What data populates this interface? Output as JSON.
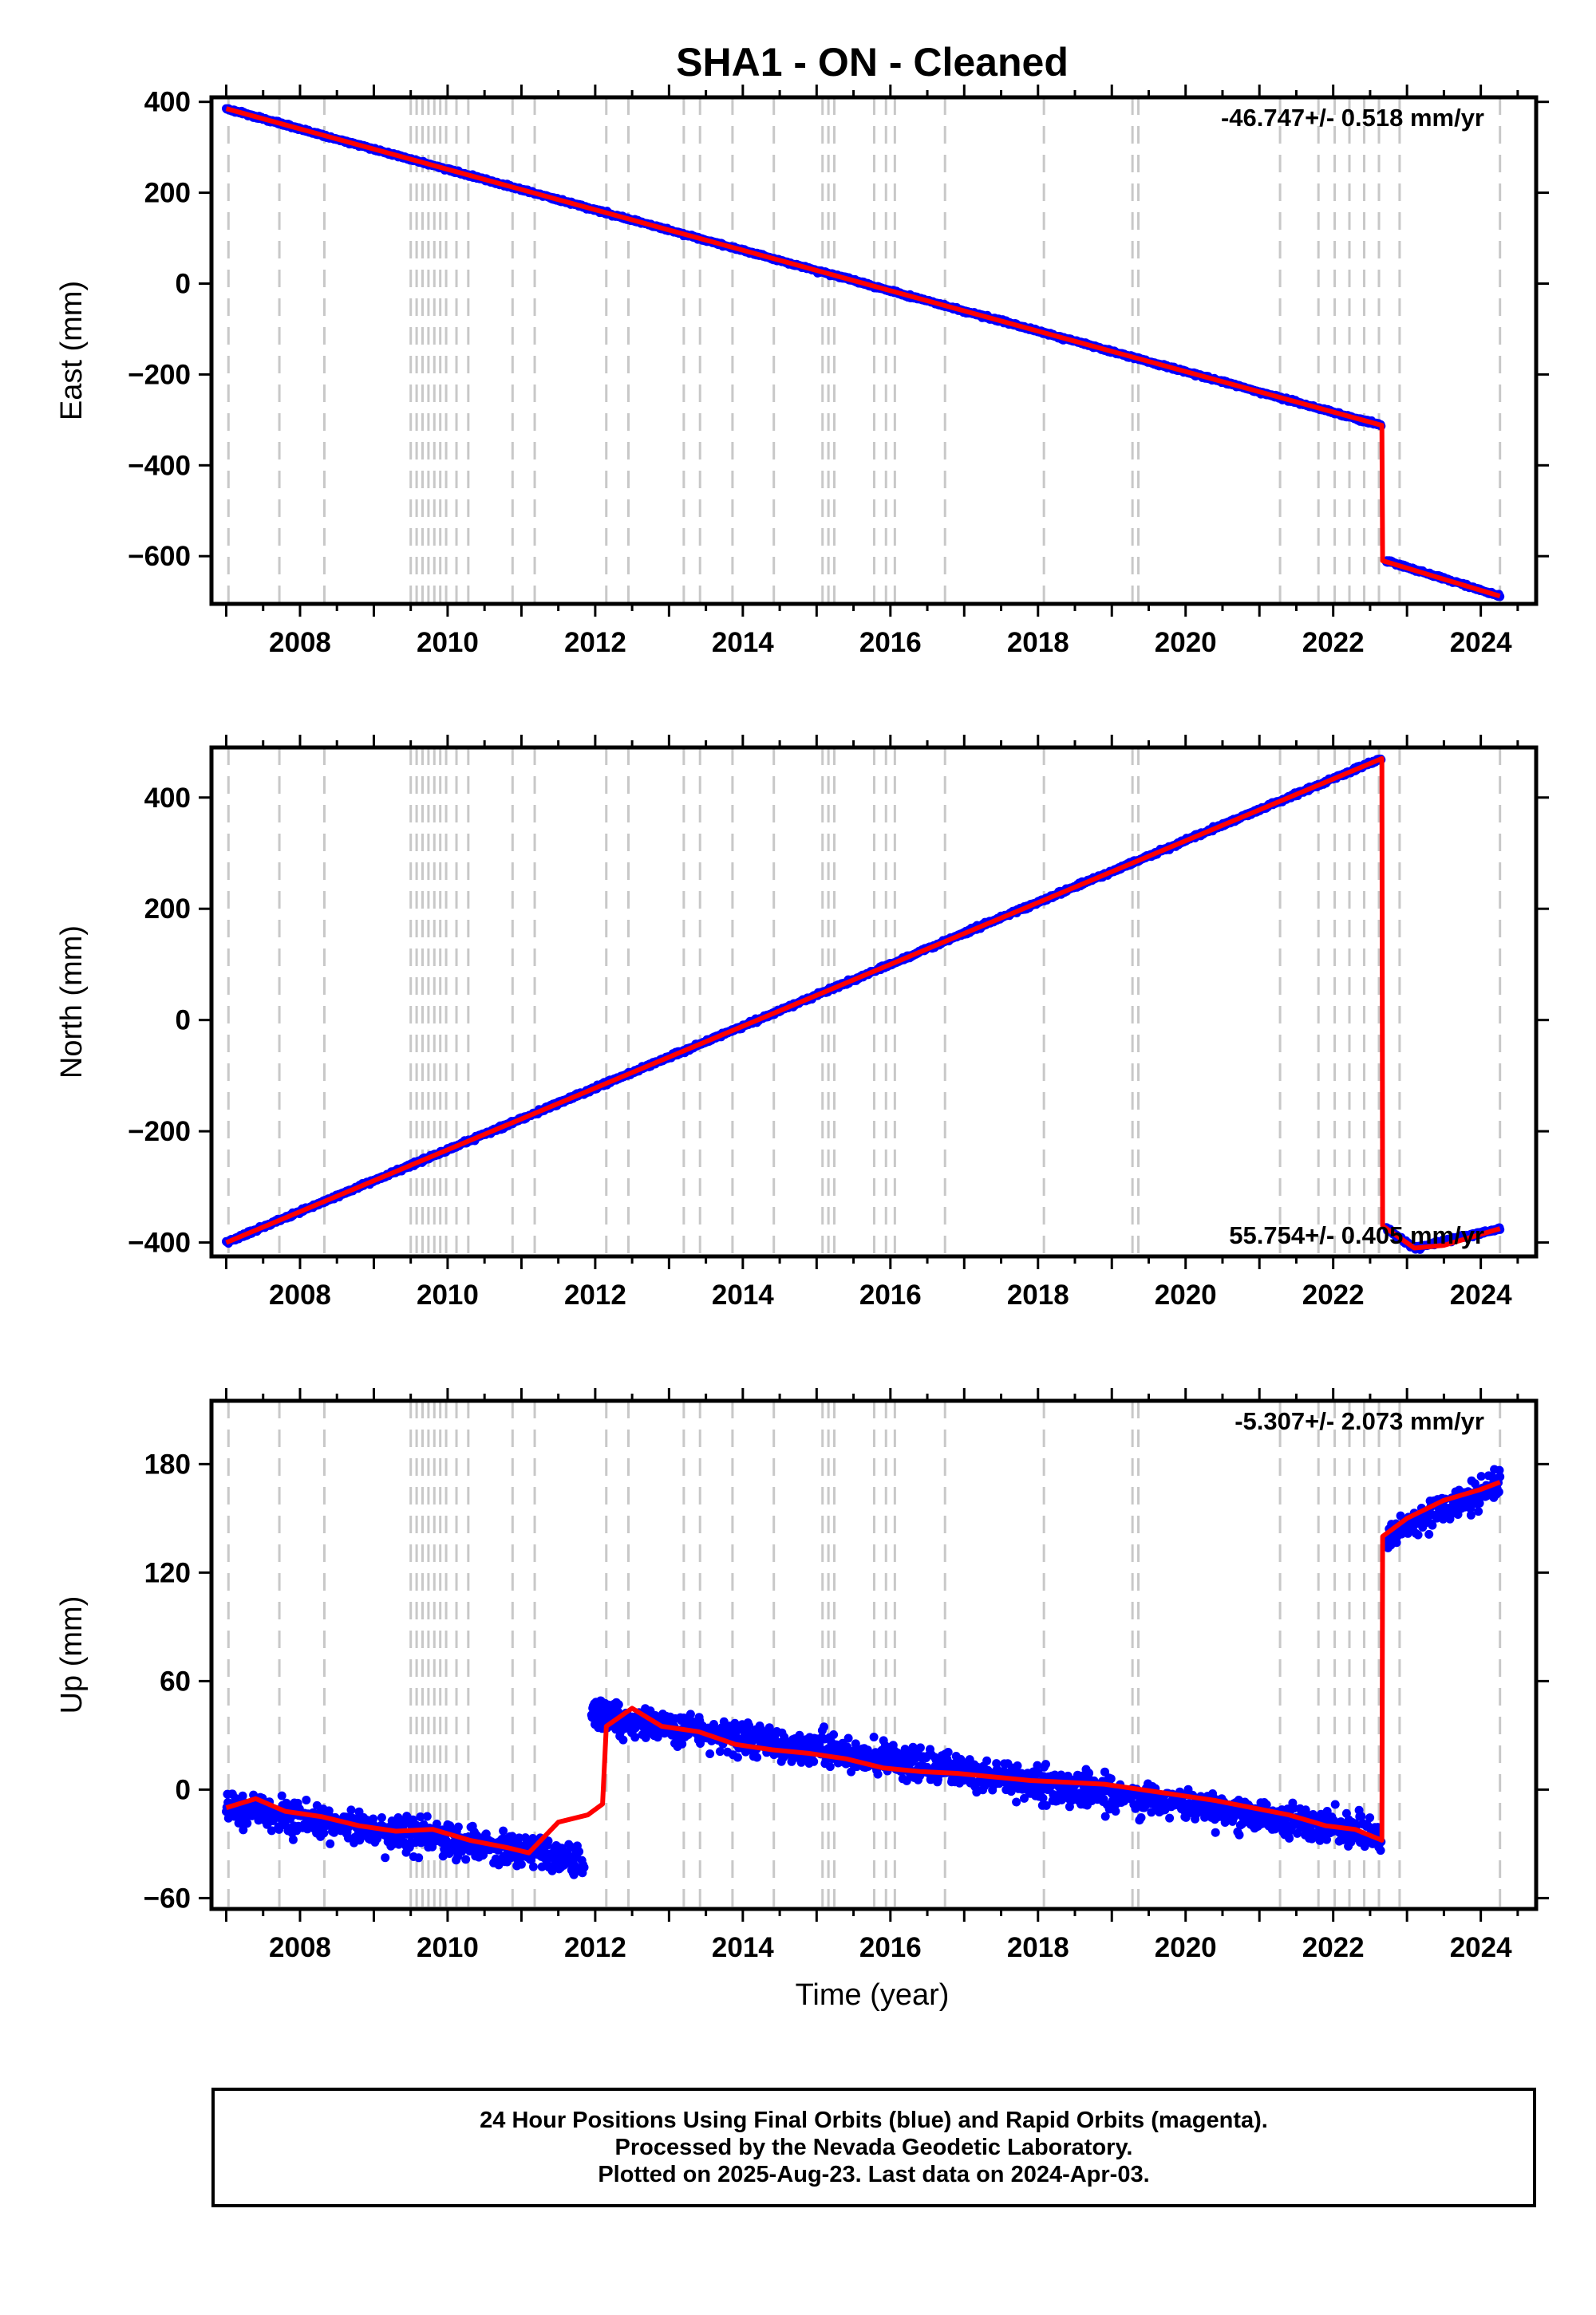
{
  "title": "SHA1  - ON - Cleaned",
  "footer": {
    "line1": "24 Hour Positions Using Final Orbits (blue) and Rapid Orbits (magenta).",
    "line2": "Processed by the Nevada Geodetic Laboratory.",
    "line3": "Plotted on 2025-Aug-23. Last data on 2024-Apr-03."
  },
  "colors": {
    "points": "#0000ff",
    "model": "#ff0000",
    "event_lines": "#c8c8c8",
    "frame": "#000000"
  },
  "chart_data": [
    {
      "type": "scatter",
      "panel": "east",
      "ylabel": "East (mm)",
      "xlim": [
        2006.8,
        2024.75
      ],
      "ylim": [
        -705,
        410
      ],
      "xticks": [
        2008,
        2010,
        2012,
        2014,
        2016,
        2018,
        2020,
        2022,
        2024
      ],
      "yticks": [
        -600,
        -400,
        -200,
        0,
        200,
        400
      ],
      "rate_label": "-46.747+/- 0.518 mm/yr",
      "rate_position": "top-right",
      "grid": false,
      "scatter_sigma": 3,
      "segments": [
        {
          "x0": 2007.0,
          "y0": 385,
          "x1": 2022.65,
          "y1": -312
        },
        {
          "x0": 2022.72,
          "y0": -610,
          "x1": 2024.26,
          "y1": -688
        }
      ],
      "model_line": [
        [
          2007.0,
          385
        ],
        [
          2022.66,
          -312
        ],
        [
          2022.67,
          -610
        ],
        [
          2024.26,
          -688
        ]
      ]
    },
    {
      "type": "scatter",
      "panel": "north",
      "ylabel": "North (mm)",
      "xlim": [
        2006.8,
        2024.75
      ],
      "ylim": [
        -425,
        490
      ],
      "xticks": [
        2008,
        2010,
        2012,
        2014,
        2016,
        2018,
        2020,
        2022,
        2024
      ],
      "yticks": [
        -400,
        -200,
        0,
        200,
        400
      ],
      "rate_label": "55.754+/- 0.405 mm/yr",
      "rate_position": "bottom-right",
      "grid": false,
      "scatter_sigma": 3,
      "segments": [
        {
          "x0": 2007.0,
          "y0": -400,
          "x1": 2022.65,
          "y1": 470
        },
        {
          "x0": 2022.72,
          "y0": -375,
          "x1": 2023.1,
          "y1": -410
        },
        {
          "x0": 2023.1,
          "y0": -410,
          "x1": 2024.26,
          "y1": -375
        }
      ],
      "model_line": [
        [
          2007.0,
          -400
        ],
        [
          2022.66,
          470
        ],
        [
          2022.67,
          -370
        ],
        [
          2023.1,
          -410
        ],
        [
          2023.5,
          -405
        ],
        [
          2024.26,
          -375
        ]
      ]
    },
    {
      "type": "scatter",
      "panel": "up",
      "ylabel": "Up (mm)",
      "xlabel": "Time (year)",
      "xlim": [
        2006.8,
        2024.75
      ],
      "ylim": [
        -66,
        215
      ],
      "xticks": [
        2008,
        2010,
        2012,
        2014,
        2016,
        2018,
        2020,
        2022,
        2024
      ],
      "yticks": [
        -60,
        0,
        60,
        120,
        180
      ],
      "rate_label": "-5.307+/- 2.073 mm/yr",
      "rate_position": "top-right",
      "grid": false,
      "scatter_sigma": 9,
      "segments": [
        {
          "x0": 2007.0,
          "y0": -10,
          "x1": 2010.9,
          "y1": -33
        },
        {
          "x0": 2010.9,
          "y0": -33,
          "x1": 2011.85,
          "y1": -42
        },
        {
          "x0": 2011.95,
          "y0": 42,
          "x1": 2012.9,
          "y1": 35
        },
        {
          "x0": 2012.9,
          "y0": 35,
          "x1": 2022.65,
          "y1": -25
        },
        {
          "x0": 2022.72,
          "y0": 140,
          "x1": 2024.26,
          "y1": 170
        }
      ],
      "model_line": [
        [
          2007.0,
          -10
        ],
        [
          2007.4,
          -5
        ],
        [
          2007.8,
          -12
        ],
        [
          2008.3,
          -15
        ],
        [
          2008.8,
          -20
        ],
        [
          2009.3,
          -23
        ],
        [
          2009.8,
          -22
        ],
        [
          2010.3,
          -28
        ],
        [
          2010.8,
          -32
        ],
        [
          2011.1,
          -35
        ],
        [
          2011.5,
          -18
        ],
        [
          2011.9,
          -14
        ],
        [
          2012.1,
          -8
        ],
        [
          2012.15,
          35
        ],
        [
          2012.5,
          45
        ],
        [
          2012.9,
          35
        ],
        [
          2013.4,
          32
        ],
        [
          2013.9,
          25
        ],
        [
          2014.4,
          22
        ],
        [
          2014.9,
          20
        ],
        [
          2015.4,
          17
        ],
        [
          2015.9,
          12
        ],
        [
          2016.4,
          10
        ],
        [
          2016.9,
          9
        ],
        [
          2017.4,
          7
        ],
        [
          2017.9,
          5
        ],
        [
          2018.4,
          4
        ],
        [
          2018.9,
          3
        ],
        [
          2019.4,
          0
        ],
        [
          2019.9,
          -3
        ],
        [
          2020.4,
          -6
        ],
        [
          2020.9,
          -10
        ],
        [
          2021.4,
          -14
        ],
        [
          2021.9,
          -20
        ],
        [
          2022.3,
          -22
        ],
        [
          2022.66,
          -28
        ],
        [
          2022.67,
          140
        ],
        [
          2023.0,
          150
        ],
        [
          2023.5,
          160
        ],
        [
          2024.0,
          166
        ],
        [
          2024.26,
          170
        ]
      ]
    }
  ],
  "event_lines_x": [
    2007.03,
    2007.72,
    2008.33,
    2009.5,
    2009.58,
    2009.66,
    2009.74,
    2009.82,
    2009.9,
    2009.98,
    2010.12,
    2010.28,
    2010.88,
    2011.18,
    2012.15,
    2012.45,
    2013.2,
    2013.42,
    2013.86,
    2014.42,
    2015.08,
    2015.16,
    2015.24,
    2015.78,
    2015.94,
    2016.06,
    2016.74,
    2018.08,
    2019.28,
    2019.36,
    2021.28,
    2021.8,
    2022.02,
    2022.22,
    2022.42,
    2022.62,
    2022.9,
    2024.26
  ]
}
